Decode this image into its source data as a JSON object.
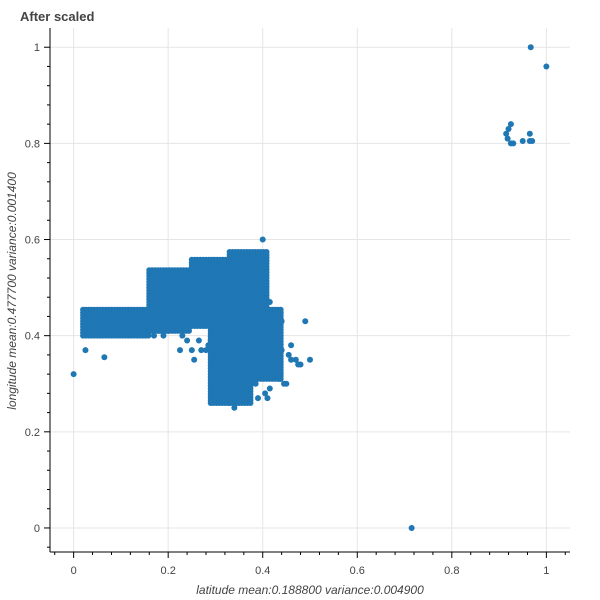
{
  "chart_data": {
    "type": "scatter",
    "title": "After scaled",
    "xlabel": "latitude  mean:0.188800  variance:0.004900",
    "ylabel": "longitude  mean:0.477700  variance:0.001400",
    "xlim": [
      -0.05,
      1.05
    ],
    "ylim": [
      -0.05,
      1.04
    ],
    "x_ticks": [
      0,
      0.2,
      0.4,
      0.6,
      0.8,
      1
    ],
    "y_ticks": [
      0,
      0.2,
      0.4,
      0.6,
      0.8,
      1
    ],
    "x_tick_labels": [
      "0",
      "0.2",
      "0.4",
      "0.6",
      "0.8",
      "1"
    ],
    "y_tick_labels": [
      "0",
      "0.2",
      "0.4",
      "0.6",
      "0.8",
      "1"
    ],
    "grid": true,
    "marker_color": "#1f77b4",
    "cluster_regions": [
      {
        "x_min": 0.02,
        "x_max": 0.16,
        "y_min": 0.4,
        "y_max": 0.46
      },
      {
        "x_min": 0.16,
        "x_max": 0.25,
        "y_min": 0.41,
        "y_max": 0.54
      },
      {
        "x_min": 0.25,
        "x_max": 0.36,
        "y_min": 0.42,
        "y_max": 0.56
      },
      {
        "x_min": 0.33,
        "x_max": 0.41,
        "y_min": 0.43,
        "y_max": 0.58
      },
      {
        "x_min": 0.29,
        "x_max": 0.38,
        "y_min": 0.26,
        "y_max": 0.43
      },
      {
        "x_min": 0.36,
        "x_max": 0.44,
        "y_min": 0.31,
        "y_max": 0.46
      }
    ],
    "points": [
      [
        0.0,
        0.32
      ],
      [
        0.025,
        0.37
      ],
      [
        0.065,
        0.355
      ],
      [
        0.05,
        0.42
      ],
      [
        0.03,
        0.41
      ],
      [
        0.4,
        0.6
      ],
      [
        0.38,
        0.55
      ],
      [
        0.5,
        0.35
      ],
      [
        0.49,
        0.43
      ],
      [
        0.48,
        0.34
      ],
      [
        0.475,
        0.34
      ],
      [
        0.47,
        0.35
      ],
      [
        0.46,
        0.35
      ],
      [
        0.455,
        0.36
      ],
      [
        0.45,
        0.3
      ],
      [
        0.445,
        0.3
      ],
      [
        0.435,
        0.31
      ],
      [
        0.43,
        0.33
      ],
      [
        0.425,
        0.32
      ],
      [
        0.42,
        0.4
      ],
      [
        0.41,
        0.36
      ],
      [
        0.4,
        0.37
      ],
      [
        0.39,
        0.27
      ],
      [
        0.385,
        0.3
      ],
      [
        0.38,
        0.35
      ],
      [
        0.375,
        0.36
      ],
      [
        0.37,
        0.32
      ],
      [
        0.365,
        0.34
      ],
      [
        0.36,
        0.28
      ],
      [
        0.355,
        0.3
      ],
      [
        0.35,
        0.29
      ],
      [
        0.345,
        0.26
      ],
      [
        0.34,
        0.25
      ],
      [
        0.335,
        0.27
      ],
      [
        0.33,
        0.26
      ],
      [
        0.325,
        0.31
      ],
      [
        0.32,
        0.33
      ],
      [
        0.315,
        0.34
      ],
      [
        0.31,
        0.35
      ],
      [
        0.305,
        0.32
      ],
      [
        0.3,
        0.36
      ],
      [
        0.295,
        0.38
      ],
      [
        0.29,
        0.39
      ],
      [
        0.285,
        0.38
      ],
      [
        0.28,
        0.37
      ],
      [
        0.27,
        0.37
      ],
      [
        0.265,
        0.39
      ],
      [
        0.255,
        0.35
      ],
      [
        0.25,
        0.37
      ],
      [
        0.24,
        0.39
      ],
      [
        0.23,
        0.4
      ],
      [
        0.225,
        0.37
      ],
      [
        0.2,
        0.41
      ],
      [
        0.19,
        0.4
      ],
      [
        0.18,
        0.41
      ],
      [
        0.17,
        0.4
      ],
      [
        0.16,
        0.41
      ],
      [
        0.41,
        0.27
      ],
      [
        0.405,
        0.28
      ],
      [
        0.415,
        0.29
      ],
      [
        0.44,
        0.37
      ],
      [
        0.46,
        0.38
      ],
      [
        0.43,
        0.38
      ],
      [
        0.345,
        0.39
      ],
      [
        0.335,
        0.4
      ],
      [
        0.325,
        0.4
      ],
      [
        0.31,
        0.38
      ],
      [
        0.42,
        0.44
      ],
      [
        0.43,
        0.45
      ],
      [
        0.415,
        0.47
      ],
      [
        0.44,
        0.43
      ],
      [
        0.915,
        0.82
      ],
      [
        0.92,
        0.83
      ],
      [
        0.925,
        0.84
      ],
      [
        0.918,
        0.81
      ],
      [
        0.925,
        0.8
      ],
      [
        0.93,
        0.8
      ],
      [
        0.95,
        0.805
      ],
      [
        0.965,
        0.82
      ],
      [
        0.965,
        0.805
      ],
      [
        0.97,
        0.805
      ],
      [
        0.967,
        1.0
      ],
      [
        1.0,
        0.96
      ],
      [
        0.715,
        0.0
      ]
    ]
  }
}
